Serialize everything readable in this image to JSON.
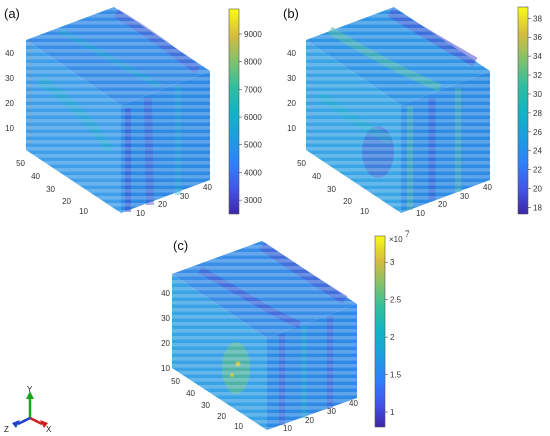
{
  "figure": {
    "triad": {
      "x_label": "X",
      "y_label": "Y",
      "z_label": "Z"
    }
  },
  "chart_data": [
    {
      "type": "heatmap",
      "subtype": "3d-volume-slices",
      "panel_label": "(a)",
      "title": "",
      "axes": {
        "vertical": {
          "ticks": [
            "10",
            "20",
            "30",
            "40"
          ],
          "range": [
            0,
            45
          ]
        },
        "left_depth": {
          "ticks": [
            "10",
            "20",
            "30",
            "40",
            "50"
          ],
          "range": [
            0,
            55
          ]
        },
        "right_depth": {
          "ticks": [
            "10",
            "20",
            "30",
            "40"
          ],
          "range": [
            0,
            45
          ]
        }
      },
      "colorbar": {
        "min": 2500,
        "max": 9900,
        "ticks": [
          3000,
          4000,
          5000,
          6000,
          7000,
          8000,
          9000
        ],
        "tick_labels": [
          "3000",
          "4000",
          "5000",
          "6000",
          "7000",
          "8000",
          "9000"
        ],
        "multiplier": "",
        "colormap": "parula"
      }
    },
    {
      "type": "heatmap",
      "subtype": "3d-volume-slices",
      "panel_label": "(b)",
      "title": "",
      "axes": {
        "vertical": {
          "ticks": [
            "10",
            "20",
            "30",
            "40"
          ],
          "range": [
            0,
            45
          ]
        },
        "left_depth": {
          "ticks": [
            "10",
            "20",
            "30",
            "40",
            "50"
          ],
          "range": [
            0,
            55
          ]
        },
        "right_depth": {
          "ticks": [
            "10",
            "20",
            "30",
            "40"
          ],
          "range": [
            0,
            45
          ]
        }
      },
      "colorbar": {
        "min": 17.3,
        "max": 39.2,
        "ticks": [
          18,
          20,
          22,
          24,
          26,
          28,
          30,
          32,
          34,
          36,
          38
        ],
        "tick_labels": [
          "18",
          "20",
          "22",
          "24",
          "26",
          "28",
          "30",
          "32",
          "34",
          "36",
          "38"
        ],
        "multiplier": "",
        "colormap": "parula"
      }
    },
    {
      "type": "heatmap",
      "subtype": "3d-volume-slices",
      "panel_label": "(c)",
      "title": "",
      "axes": {
        "vertical": {
          "ticks": [
            "10",
            "20",
            "30",
            "40"
          ],
          "range": [
            0,
            45
          ]
        },
        "left_depth": {
          "ticks": [
            "10",
            "20",
            "30",
            "40",
            "50"
          ],
          "range": [
            0,
            55
          ]
        },
        "right_depth": {
          "ticks": [
            "10",
            "20",
            "30",
            "40"
          ],
          "range": [
            0,
            45
          ]
        }
      },
      "colorbar": {
        "min": 0.8,
        "max": 3.35,
        "ticks": [
          1,
          1.5,
          2,
          2.5,
          3
        ],
        "tick_labels": [
          "1",
          "1.5",
          "2",
          "2.5",
          "3"
        ],
        "multiplier": "×10",
        "multiplier_exponent": "7",
        "colormap": "parula"
      }
    }
  ]
}
